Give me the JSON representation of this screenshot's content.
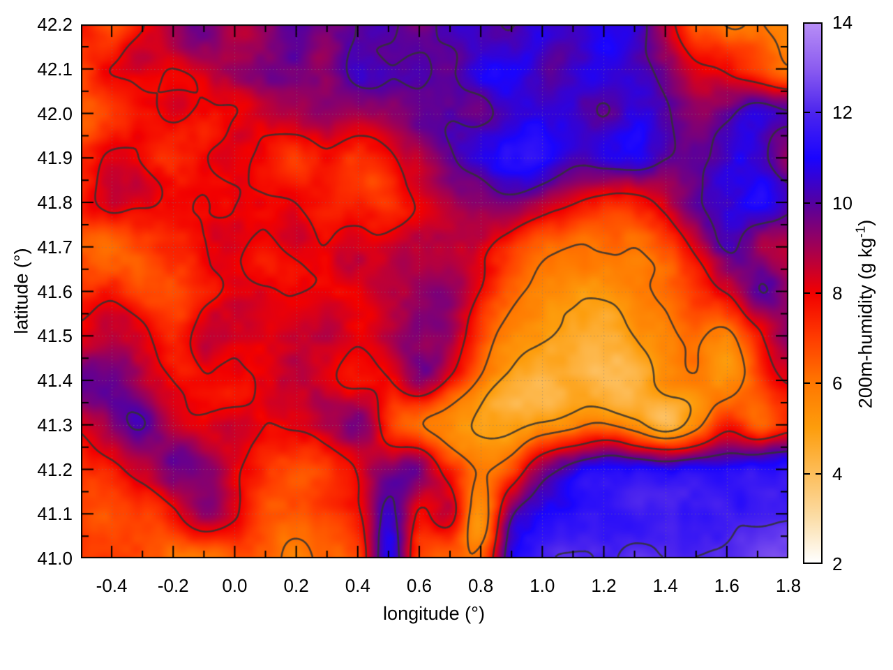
{
  "axes": {
    "xlabel": "longitude (°)",
    "ylabel": "latitude (°)",
    "xlim": [
      -0.5,
      1.8
    ],
    "ylim": [
      41.0,
      42.2
    ],
    "xticks": {
      "values": [
        -0.4,
        -0.2,
        0.0,
        0.2,
        0.4,
        0.6,
        0.8,
        1.0,
        1.2,
        1.4,
        1.6,
        1.8
      ],
      "labels": [
        "-0.4",
        "-0.2",
        "0.0",
        "0.2",
        "0.4",
        "0.6",
        "0.8",
        "1.0",
        "1.2",
        "1.4",
        "1.6",
        "1.8"
      ]
    },
    "yticks": {
      "values": [
        41.0,
        41.1,
        41.2,
        41.3,
        41.4,
        41.5,
        41.6,
        41.7,
        41.8,
        41.9,
        42.0,
        42.1,
        42.2
      ],
      "labels": [
        "41.0",
        "41.1",
        "41.2",
        "41.3",
        "41.4",
        "41.5",
        "41.6",
        "41.7",
        "41.8",
        "41.9",
        "42.0",
        "42.1",
        "42.2"
      ]
    },
    "xminor_step": 0.1,
    "yminor_step": 0.05,
    "grid": true
  },
  "colorbar": {
    "label_prefix": "200m-humidity (g kg",
    "label_sup": "-1",
    "label_suffix": ")",
    "lim": [
      2,
      14
    ],
    "ticks": {
      "values": [
        2,
        4,
        6,
        8,
        10,
        12,
        14
      ],
      "labels": [
        "2",
        "4",
        "6",
        "8",
        "10",
        "12",
        "14"
      ]
    },
    "dash_values": [
      4,
      6,
      8,
      10,
      12
    ]
  },
  "chart_data": {
    "type": "heatmap",
    "title": "",
    "xlabel": "longitude (°)",
    "ylabel": "latitude (°)",
    "zlabel": "200m-humidity (g kg-1)",
    "xlim": [
      -0.5,
      1.8
    ],
    "ylim": [
      41.0,
      42.2
    ],
    "zlim": [
      2,
      14
    ],
    "grid": true,
    "legend_position": "right-colorbar",
    "x_start": -0.5,
    "x_step": 0.1,
    "y_start": 42.2,
    "y_step": -0.1,
    "palette": [
      [
        2,
        "#ffffff"
      ],
      [
        3,
        "#fbdda7"
      ],
      [
        4,
        "#fdbd59"
      ],
      [
        5,
        "#fd9d0c"
      ],
      [
        6,
        "#ff7700"
      ],
      [
        7,
        "#ff3c00"
      ],
      [
        8,
        "#f20000"
      ],
      [
        9,
        "#a30052"
      ],
      [
        10,
        "#5500a0"
      ],
      [
        11,
        "#1a04fe"
      ],
      [
        12,
        "#4b24ee"
      ],
      [
        13,
        "#8b5cf0"
      ],
      [
        14,
        "#b78df6"
      ]
    ],
    "contour_levels": [
      5,
      6,
      8,
      10,
      12
    ],
    "contour_color": "#323232",
    "values": [
      [
        8.2,
        7.2,
        8.5,
        9.3,
        9.6,
        8.6,
        9.2,
        9.8,
        9.4,
        10.0,
        10.3,
        9.8,
        10.4,
        10.6,
        10.1,
        10.8,
        10.4,
        10.6,
        10.5,
        9.0,
        7.0,
        6.2,
        6.3,
        5.5
      ],
      [
        7.6,
        8.2,
        8.6,
        8.2,
        8.6,
        9.0,
        9.3,
        9.8,
        9.5,
        10.0,
        9.7,
        10.2,
        10.0,
        10.5,
        10.8,
        10.2,
        10.6,
        11.0,
        10.7,
        10.0,
        8.6,
        8.0,
        7.2,
        6.2
      ],
      [
        7.0,
        6.8,
        7.6,
        8.2,
        7.8,
        8.0,
        8.6,
        9.0,
        9.3,
        8.8,
        9.0,
        9.6,
        9.8,
        9.4,
        10.0,
        10.5,
        10.8,
        10.4,
        11.0,
        10.6,
        9.4,
        9.8,
        10.6,
        10.0
      ],
      [
        7.8,
        8.0,
        7.6,
        7.2,
        7.8,
        8.2,
        7.6,
        7.0,
        7.6,
        6.9,
        7.2,
        8.6,
        9.6,
        10.2,
        10.8,
        11.0,
        10.4,
        10.8,
        11.0,
        10.5,
        10.0,
        10.8,
        10.4,
        9.0
      ],
      [
        8.0,
        8.3,
        8.0,
        7.8,
        8.2,
        8.0,
        8.3,
        8.0,
        7.8,
        7.2,
        6.8,
        8.0,
        8.6,
        9.2,
        9.6,
        9.0,
        8.4,
        7.8,
        7.6,
        8.6,
        10.0,
        10.6,
        11.0,
        10.0
      ],
      [
        6.8,
        6.5,
        6.8,
        7.6,
        8.0,
        8.3,
        8.0,
        8.3,
        8.0,
        8.2,
        8.0,
        8.4,
        8.6,
        8.0,
        7.0,
        6.2,
        5.8,
        5.8,
        6.0,
        7.0,
        8.6,
        10.2,
        9.0,
        8.6
      ],
      [
        7.0,
        7.5,
        6.6,
        6.9,
        7.8,
        8.3,
        8.0,
        7.8,
        8.0,
        8.0,
        8.4,
        8.8,
        9.2,
        8.0,
        6.5,
        5.6,
        5.2,
        5.2,
        5.6,
        6.2,
        7.0,
        8.0,
        9.8,
        9.0
      ],
      [
        8.0,
        8.5,
        8.0,
        7.2,
        8.4,
        8.0,
        7.8,
        8.0,
        8.4,
        8.0,
        8.6,
        9.3,
        9.0,
        7.0,
        6.0,
        5.4,
        5.0,
        4.7,
        5.0,
        5.5,
        6.0,
        5.6,
        7.5,
        9.0
      ],
      [
        9.6,
        9.8,
        8.5,
        8.0,
        8.0,
        7.6,
        8.0,
        8.4,
        8.0,
        7.6,
        8.0,
        9.3,
        8.0,
        6.0,
        5.0,
        4.6,
        5.0,
        4.6,
        4.5,
        5.0,
        5.5,
        5.0,
        6.5,
        8.0
      ],
      [
        8.0,
        9.3,
        9.8,
        8.5,
        8.0,
        8.0,
        7.7,
        8.0,
        9.0,
        9.5,
        7.0,
        6.0,
        5.2,
        4.6,
        4.5,
        5.0,
        5.5,
        6.0,
        5.2,
        4.7,
        5.5,
        7.0,
        6.2,
        7.5
      ],
      [
        7.5,
        7.8,
        8.5,
        9.8,
        9.3,
        8.0,
        7.0,
        6.6,
        7.2,
        7.8,
        9.0,
        9.5,
        7.0,
        5.5,
        6.5,
        9.0,
        10.2,
        10.8,
        11.0,
        11.0,
        11.2,
        11.0,
        11.2,
        11.3
      ],
      [
        7.0,
        6.8,
        7.0,
        8.0,
        9.3,
        8.0,
        6.6,
        6.2,
        6.6,
        7.5,
        10.0,
        7.8,
        8.5,
        5.0,
        9.5,
        11.0,
        11.2,
        11.4,
        11.4,
        11.5,
        11.5,
        11.8,
        11.8,
        12.0
      ],
      [
        7.0,
        7.0,
        6.6,
        6.2,
        6.5,
        6.5,
        6.2,
        5.8,
        6.2,
        7.0,
        11.0,
        7.0,
        6.8,
        6.5,
        11.0,
        11.8,
        12.0,
        12.0,
        12.2,
        12.3,
        12.4,
        12.6,
        12.8,
        12.9
      ]
    ]
  }
}
